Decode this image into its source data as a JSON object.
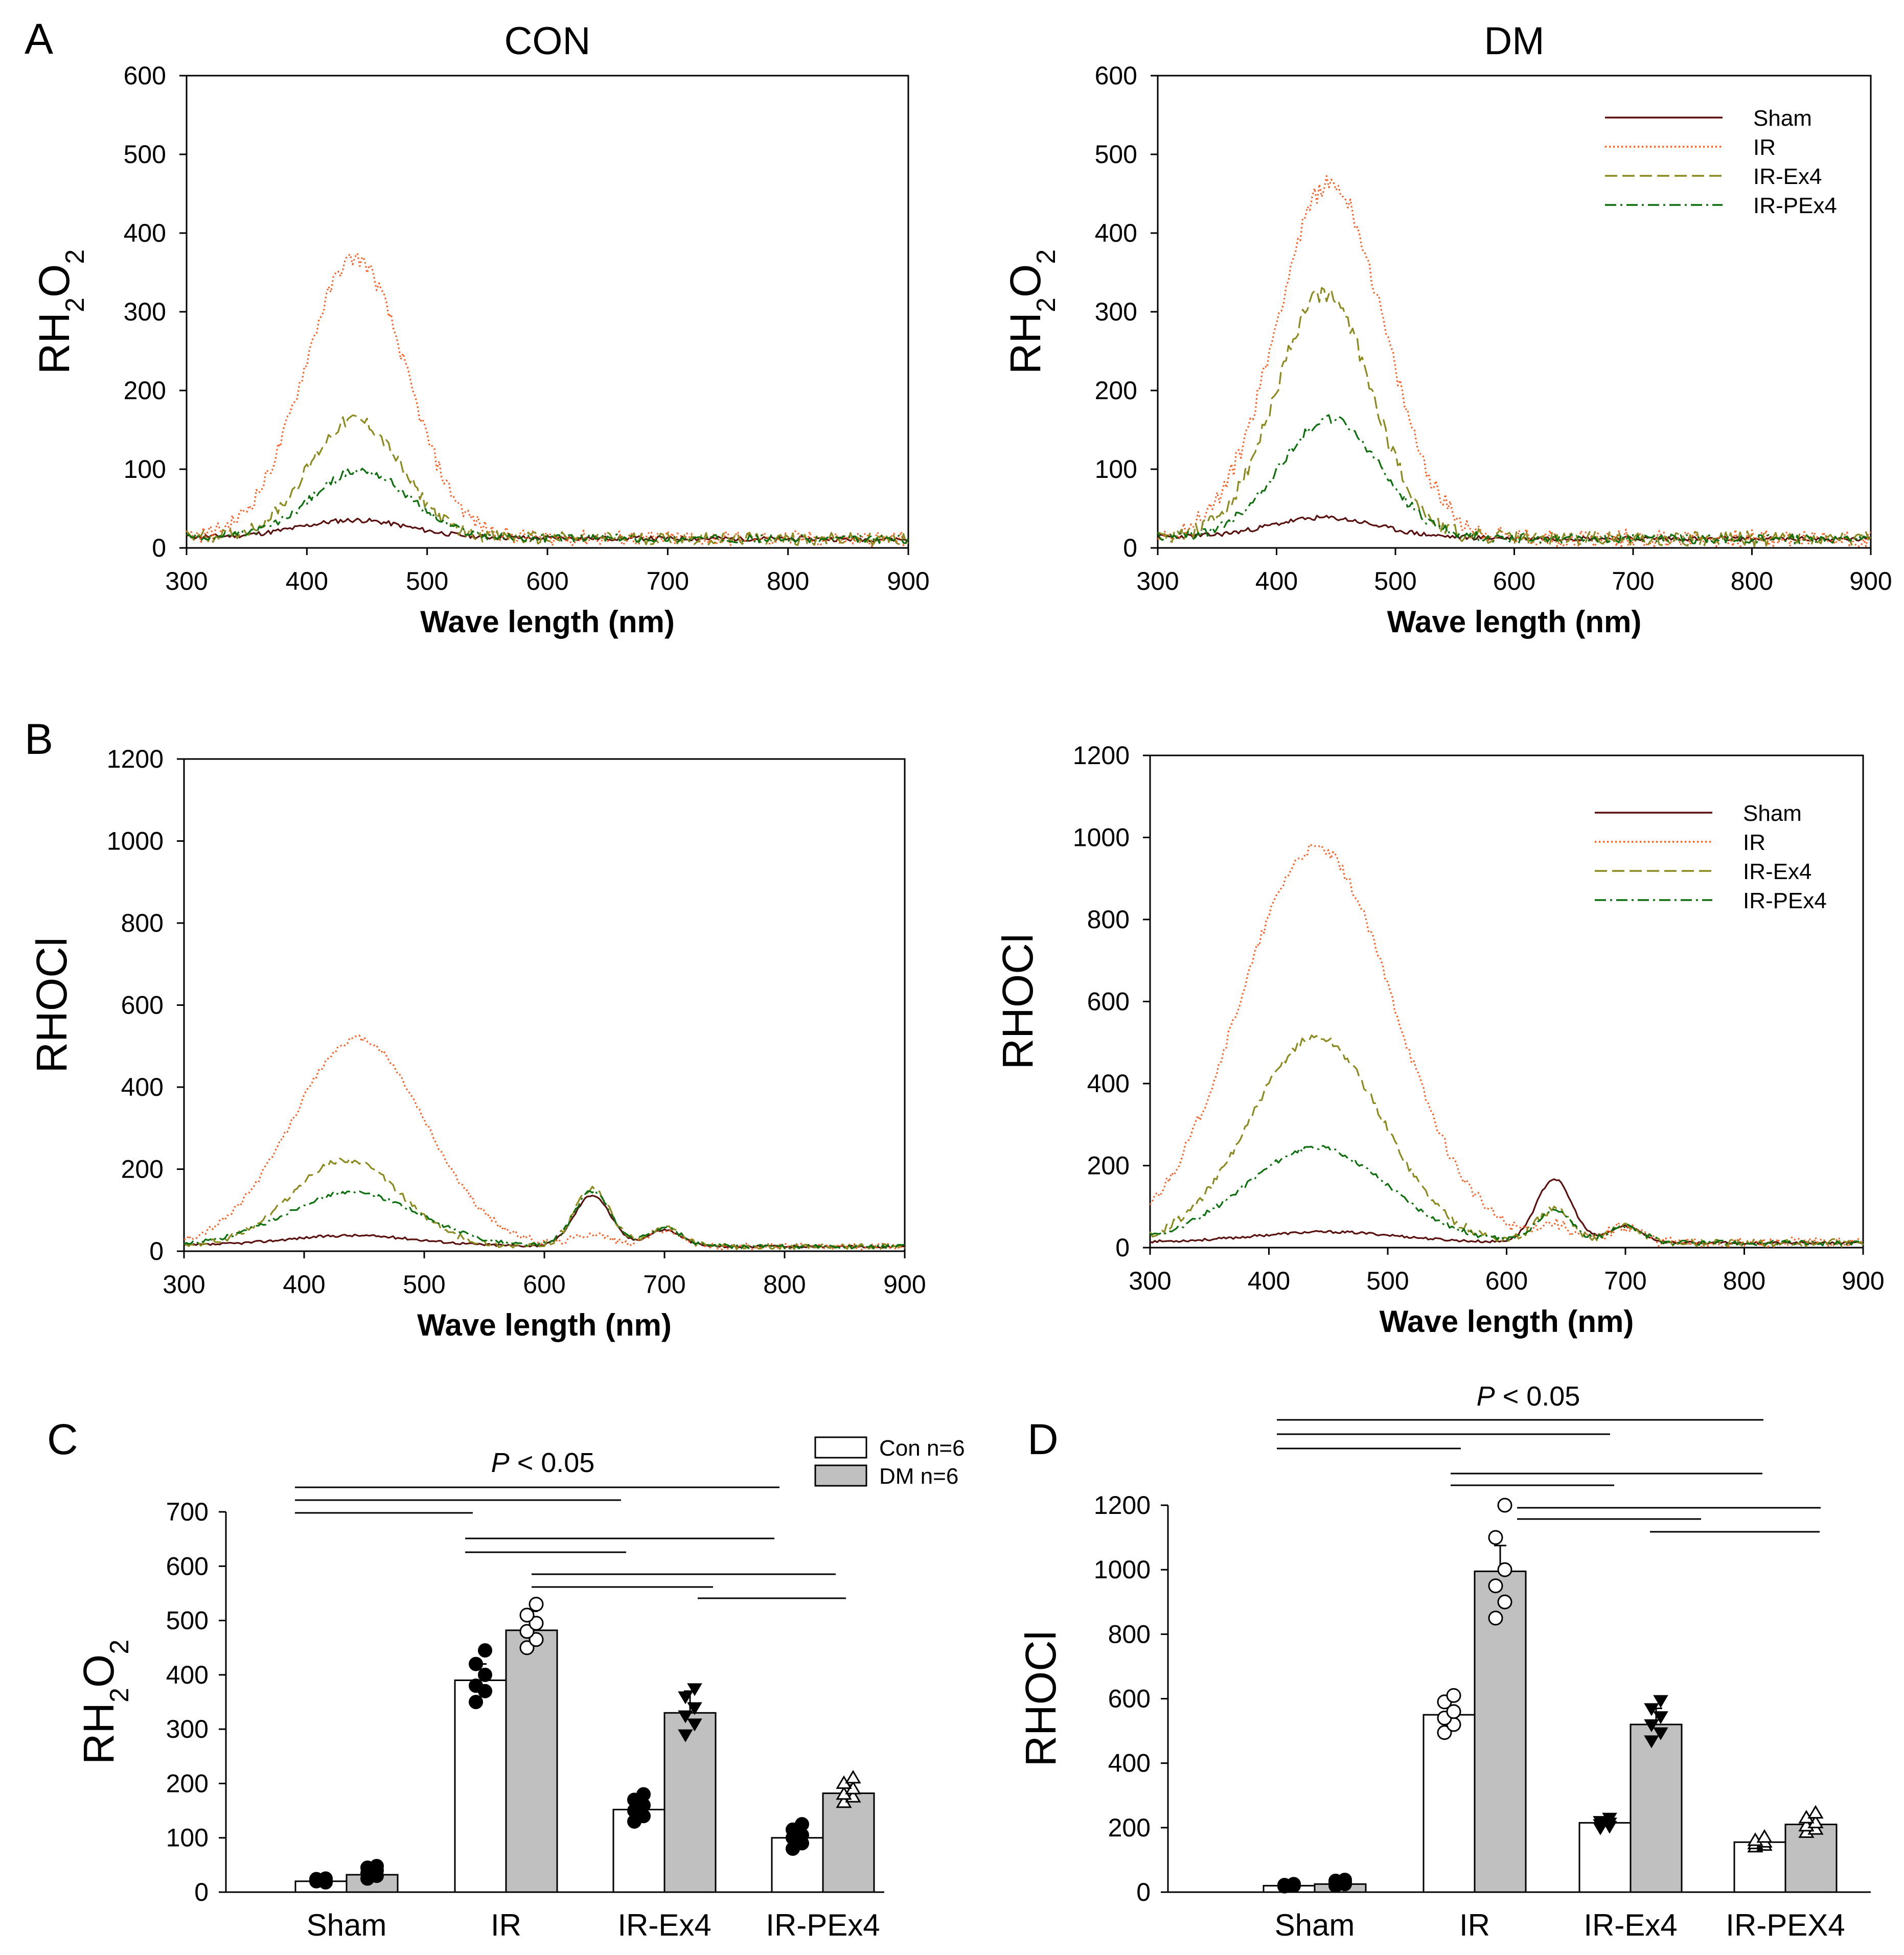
{
  "figure": {
    "panel_labels": [
      "A",
      "B",
      "C",
      "D"
    ],
    "p_value_label": "P",
    "p_value_rest": " < 0.05"
  },
  "chart_data": [
    {
      "id": "A-CON",
      "type": "line",
      "title": "CON",
      "xlabel": "Wave length (nm)",
      "ylabel": "RH2O2",
      "xlim": [
        300,
        900
      ],
      "ylim": [
        0,
        600
      ],
      "xticks": [
        300,
        400,
        500,
        600,
        700,
        800,
        900
      ],
      "yticks": [
        0,
        100,
        200,
        300,
        400,
        500,
        600
      ],
      "series": [
        {
          "name": "Sham",
          "color": "#5a0f0f",
          "dash": "solid",
          "peaks": [
            [
              440,
              22,
              45
            ]
          ],
          "noise": 3
        },
        {
          "name": "IR",
          "color": "#ff5a1e",
          "dash": "dotted",
          "peaks": [
            [
              440,
              355,
              42
            ]
          ],
          "noise": 10
        },
        {
          "name": "IR-Ex4",
          "color": "#8a8a1e",
          "dash": "dashed",
          "peaks": [
            [
              440,
              150,
              38
            ]
          ],
          "noise": 8
        },
        {
          "name": "IR-PEx4",
          "color": "#0d6e0d",
          "dash": "dashdot",
          "peaks": [
            [
              445,
              85,
              40
            ]
          ],
          "noise": 5
        }
      ]
    },
    {
      "id": "A-DM",
      "type": "line",
      "title": "DM",
      "xlabel": "Wave length (nm)",
      "ylabel": "RH2O2",
      "xlim": [
        300,
        900
      ],
      "ylim": [
        0,
        600
      ],
      "xticks": [
        300,
        400,
        500,
        600,
        700,
        800,
        900
      ],
      "yticks": [
        0,
        100,
        200,
        300,
        400,
        500,
        600
      ],
      "legend": [
        "Sham",
        "IR",
        "IR-Ex4",
        "IR-PEx4"
      ],
      "legend_position": "top-right",
      "series": [
        {
          "name": "Sham",
          "color": "#5a0f0f",
          "dash": "solid",
          "peaks": [
            [
              440,
              25,
              45
            ]
          ],
          "noise": 3
        },
        {
          "name": "IR",
          "color": "#ff5a1e",
          "dash": "dotted",
          "peaks": [
            [
              445,
              450,
              45
            ]
          ],
          "noise": 12
        },
        {
          "name": "IR-Ex4",
          "color": "#8a8a1e",
          "dash": "dashed",
          "peaks": [
            [
              440,
              310,
              40
            ]
          ],
          "noise": 10
        },
        {
          "name": "IR-PEx4",
          "color": "#0d6e0d",
          "dash": "dashdot",
          "peaks": [
            [
              445,
              150,
              42
            ]
          ],
          "noise": 6
        }
      ]
    },
    {
      "id": "B-CON",
      "type": "line",
      "title": "",
      "xlabel": "Wave length (nm)",
      "ylabel": "RHOCl",
      "xlim": [
        300,
        900
      ],
      "ylim": [
        0,
        1200
      ],
      "xticks": [
        300,
        400,
        500,
        600,
        700,
        800,
        900
      ],
      "yticks": [
        0,
        200,
        400,
        600,
        800,
        1000,
        1200
      ],
      "series": [
        {
          "name": "Sham",
          "color": "#5a0f0f",
          "dash": "solid",
          "peaks": [
            [
              440,
              25,
              55
            ],
            [
              640,
              125,
              15
            ],
            [
              700,
              40,
              14
            ]
          ],
          "noise": 3
        },
        {
          "name": "IR",
          "color": "#ff5a1e",
          "dash": "dotted",
          "peaks": [
            [
              445,
              505,
              55
            ],
            [
              640,
              30,
              15
            ],
            [
              700,
              40,
              14
            ]
          ],
          "noise": 8
        },
        {
          "name": "IR-Ex4",
          "color": "#8a8a1e",
          "dash": "dashed",
          "peaks": [
            [
              435,
              210,
              45
            ],
            [
              640,
              140,
              15
            ],
            [
              700,
              45,
              14
            ]
          ],
          "noise": 7
        },
        {
          "name": "IR-PEx4",
          "color": "#0d6e0d",
          "dash": "dashdot",
          "peaks": [
            [
              440,
              130,
              55
            ],
            [
              640,
              135,
              15
            ],
            [
              700,
              45,
              14
            ]
          ],
          "noise": 5
        }
      ]
    },
    {
      "id": "B-DM",
      "type": "line",
      "title": "",
      "xlabel": "Wave length (nm)",
      "ylabel": "RHOCl",
      "xlim": [
        300,
        900
      ],
      "ylim": [
        0,
        1200
      ],
      "xticks": [
        300,
        400,
        500,
        600,
        700,
        800,
        900
      ],
      "yticks": [
        0,
        200,
        400,
        600,
        800,
        1000,
        1200
      ],
      "legend": [
        "Sham",
        "IR",
        "IR-Ex4",
        "IR-PEx4"
      ],
      "legend_position": "top-right",
      "series": [
        {
          "name": "Sham",
          "color": "#5a0f0f",
          "dash": "solid",
          "peaks": [
            [
              450,
              25,
              60
            ],
            [
              640,
              155,
              15
            ],
            [
              700,
              40,
              14
            ]
          ],
          "noise": 3
        },
        {
          "name": "IR",
          "color": "#ff5a1e",
          "dash": "dotted",
          "peaks": [
            [
              440,
              960,
              65
            ],
            [
              640,
              40,
              15
            ],
            [
              700,
              40,
              14
            ]
          ],
          "noise": 14
        },
        {
          "name": "IR-Ex4",
          "color": "#8a8a1e",
          "dash": "dashed",
          "peaks": [
            [
              440,
              500,
              55
            ],
            [
              640,
              80,
              15
            ],
            [
              700,
              40,
              14
            ]
          ],
          "noise": 10
        },
        {
          "name": "IR-PEx4",
          "color": "#0d6e0d",
          "dash": "dashdot",
          "peaks": [
            [
              440,
              230,
              60
            ],
            [
              640,
              80,
              15
            ],
            [
              700,
              40,
              14
            ]
          ],
          "noise": 6
        }
      ]
    },
    {
      "id": "C",
      "type": "bar",
      "title": "",
      "xlabel": "",
      "ylabel": "RH2O2",
      "categories": [
        "Sham",
        "IR",
        "IR-Ex4",
        "IR-PEx4"
      ],
      "ylim": [
        0,
        700
      ],
      "yticks": [
        0,
        100,
        200,
        300,
        400,
        500,
        600,
        700
      ],
      "legend": [
        "Con n=6",
        "DM n=6"
      ],
      "legend_position": "top-right",
      "significance": "P < 0.05",
      "series": [
        {
          "name": "Con n=6",
          "fill": "#ffffff",
          "values": [
            20,
            390,
            152,
            100
          ],
          "errors": [
            5,
            30,
            15,
            15
          ],
          "points": [
            [
              20,
              22,
              24,
              18,
              21,
              25
            ],
            [
              350,
              370,
              380,
              400,
              420,
              445
            ],
            [
              130,
              140,
              150,
              160,
              170,
              180
            ],
            [
              80,
              90,
              100,
              105,
              115,
              125
            ]
          ],
          "marker": "filled-circle"
        },
        {
          "name": "DM n=6",
          "fill": "#c0c0c0",
          "values": [
            32,
            482,
            330,
            182
          ],
          "errors": [
            10,
            35,
            40,
            15
          ],
          "points": [
            [
              25,
              30,
              35,
              40,
              45,
              48
            ],
            [
              450,
              465,
              480,
              495,
              510,
              530
            ],
            [
              290,
              310,
              325,
              340,
              360,
              375
            ],
            [
              165,
              175,
              180,
              190,
              200,
              210
            ]
          ],
          "marker": "open-circle|triangle-down|open-triangle"
        }
      ]
    },
    {
      "id": "D",
      "type": "bar",
      "title": "",
      "xlabel": "",
      "ylabel": "RHOCl",
      "categories": [
        "Sham",
        "IR",
        "IR-Ex4",
        "IR-PEX4"
      ],
      "ylim": [
        0,
        1200
      ],
      "yticks": [
        0,
        200,
        400,
        600,
        800,
        1000,
        1200
      ],
      "legend": [],
      "significance": "P < 0.05",
      "series": [
        {
          "name": "Con",
          "fill": "#ffffff",
          "values": [
            20,
            550,
            215,
            155
          ],
          "errors": [
            5,
            40,
            10,
            10
          ],
          "points": [
            [
              18,
              20,
              22,
              25,
              20,
              23
            ],
            [
              495,
              520,
              540,
              560,
              590,
              610
            ],
            [
              200,
              205,
              210,
              215,
              220,
              230
            ],
            [
              140,
              145,
              150,
              155,
              160,
              170
            ]
          ],
          "marker": "filled-circle"
        },
        {
          "name": "DM",
          "fill": "#c0c0c0",
          "values": [
            25,
            995,
            520,
            210
          ],
          "errors": [
            10,
            80,
            50,
            20
          ],
          "points": [
            [
              20,
              25,
              30,
              32,
              35,
              38
            ],
            [
              850,
              900,
              950,
              1000,
              1100,
              1200
            ],
            [
              470,
              495,
              520,
              545,
              570,
              595
            ],
            [
              185,
              195,
              205,
              215,
              230,
              245
            ]
          ],
          "marker": "open-circle|triangle-down|open-triangle"
        }
      ]
    }
  ]
}
